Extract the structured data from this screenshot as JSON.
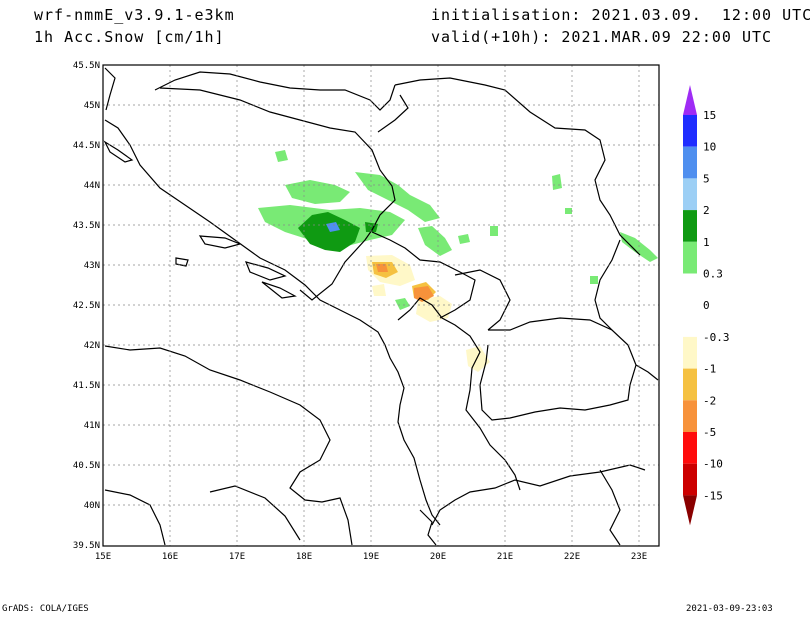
{
  "header": {
    "model": "wrf-nmmE_v3.9.1-e3km",
    "field": "1h Acc.Snow [cm/1h]",
    "init": "initialisation: 2021.03.09.  12:00 UTC",
    "valid": "valid(+10h): 2021.MAR.09 22:00 UTC"
  },
  "footer": {
    "credit": "GrADS: COLA/IGES",
    "timestamp": "2021-03-09-23:03"
  },
  "map": {
    "lon_ticks": [
      "15E",
      "16E",
      "17E",
      "18E",
      "19E",
      "20E",
      "21E",
      "22E",
      "23E"
    ],
    "lat_ticks": [
      "45.5N",
      "45N",
      "44.5N",
      "44N",
      "43.5N",
      "43N",
      "42.5N",
      "42N",
      "41.5N",
      "41N",
      "40.5N",
      "40N",
      "39.5N"
    ],
    "lon_range": [
      15,
      23.3
    ],
    "lat_range": [
      39.5,
      45.5
    ]
  },
  "colorbar": {
    "labels": [
      "15",
      "10",
      "5",
      "2",
      "1",
      "0.3",
      "0",
      "-0.3",
      "-1",
      "-2",
      "-5",
      "-10",
      "-15"
    ],
    "colors": [
      "#1f2eff",
      "#4f8fef",
      "#9ccff5",
      "#0f9a12",
      "#79ea75",
      "#ffffff",
      "#ffffff",
      "#fff8c8",
      "#f5c141",
      "#f7923b",
      "#ff0b0b",
      "#cc0000",
      "#9b0000"
    ],
    "top_arrow_color": "#9f2cf5",
    "bottom_arrow_color": "#8a0000"
  }
}
